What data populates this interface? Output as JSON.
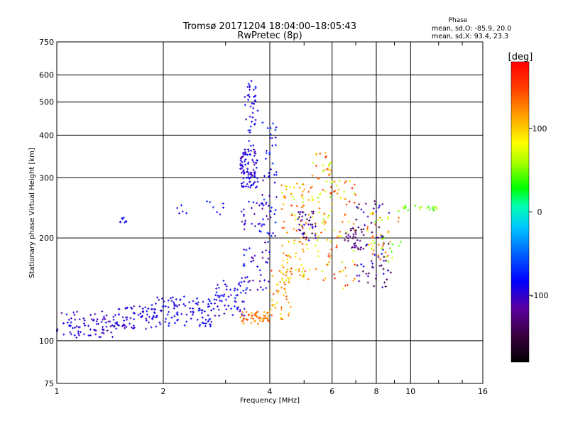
{
  "chart_data": {
    "type": "scatter",
    "title": "Tromsø 20171204 18:04:00–18:05:43",
    "subtitle": "RwPretec (8p)",
    "xlabel": "Frequency [MHz]",
    "ylabel": "Stationary phase Virtual Height [km]",
    "x_scale": "log",
    "y_scale": "log",
    "xlim": [
      1,
      16
    ],
    "ylim": [
      75,
      750
    ],
    "x_ticks": [
      1,
      2,
      4,
      6,
      8,
      10,
      16
    ],
    "y_ticks": [
      75,
      100,
      200,
      300,
      400,
      500,
      600,
      750
    ],
    "grid": true,
    "phase_info": {
      "title": "Phase",
      "line_o": "mean, sd,O: -85.9, 20.0",
      "line_x": "mean, sd,X:  93.4, 23.3"
    },
    "colorbar": {
      "label": "[deg]",
      "range": [
        -180,
        180
      ],
      "ticks": [
        100,
        0,
        -100
      ],
      "colormap": "rainbow"
    },
    "clusters": [
      {
        "f": [
          1.0,
          1.45
        ],
        "h": [
          102,
          122
        ],
        "phase": [
          -115,
          -85
        ],
        "count": 80
      },
      {
        "f": [
          1.45,
          1.9
        ],
        "h": [
          108,
          128
        ],
        "phase": [
          -110,
          -80
        ],
        "count": 70
      },
      {
        "f": [
          1.9,
          2.8
        ],
        "h": [
          110,
          135
        ],
        "phase": [
          -105,
          -75
        ],
        "count": 100
      },
      {
        "f": [
          2.8,
          3.5
        ],
        "h": [
          118,
          150
        ],
        "phase": [
          -110,
          -70
        ],
        "count": 60
      },
      {
        "f": [
          3.3,
          4.0
        ],
        "h": [
          112,
          122
        ],
        "phase": [
          110,
          150
        ],
        "count": 55
      },
      {
        "f": [
          3.3,
          3.7
        ],
        "h": [
          280,
          360
        ],
        "phase": [
          -110,
          -80
        ],
        "count": 90
      },
      {
        "f": [
          3.4,
          3.7
        ],
        "h": [
          360,
          580
        ],
        "phase": [
          -110,
          -70
        ],
        "count": 45
      },
      {
        "f": [
          3.3,
          4.0
        ],
        "h": [
          140,
          260
        ],
        "phase": [
          -120,
          -70
        ],
        "count": 70
      },
      {
        "f": [
          3.8,
          4.2
        ],
        "h": [
          200,
          440
        ],
        "phase": [
          -110,
          -60
        ],
        "count": 50
      },
      {
        "f": [
          4.0,
          4.6
        ],
        "h": [
          115,
          170
        ],
        "phase": [
          90,
          150
        ],
        "count": 50
      },
      {
        "f": [
          4.3,
          5.2
        ],
        "h": [
          150,
          290
        ],
        "phase": [
          60,
          150
        ],
        "count": 100
      },
      {
        "f": [
          4.8,
          5.4
        ],
        "h": [
          195,
          240
        ],
        "phase": [
          -150,
          -90
        ],
        "count": 40
      },
      {
        "f": [
          5.2,
          6.0
        ],
        "h": [
          150,
          360
        ],
        "phase": [
          50,
          160
        ],
        "count": 70
      },
      {
        "f": [
          5.8,
          7.0
        ],
        "h": [
          140,
          300
        ],
        "phase": [
          60,
          180
        ],
        "count": 60
      },
      {
        "f": [
          6.5,
          7.5
        ],
        "h": [
          185,
          215
        ],
        "phase": [
          -150,
          -110
        ],
        "count": 35
      },
      {
        "f": [
          7.0,
          8.8
        ],
        "h": [
          140,
          260
        ],
        "phase": [
          -160,
          -80
        ],
        "count": 70
      },
      {
        "f": [
          7.5,
          9.5
        ],
        "h": [
          170,
          240
        ],
        "phase": [
          30,
          150
        ],
        "count": 50
      },
      {
        "f": [
          9.5,
          12.0
        ],
        "h": [
          240,
          250
        ],
        "phase": [
          30,
          70
        ],
        "count": 20
      },
      {
        "f": [
          1.5,
          1.6
        ],
        "h": [
          222,
          230
        ],
        "phase": [
          -110,
          -70
        ],
        "count": 8
      },
      {
        "f": [
          2.1,
          3.0
        ],
        "h": [
          230,
          265
        ],
        "phase": [
          -110,
          -70
        ],
        "count": 12
      }
    ]
  }
}
